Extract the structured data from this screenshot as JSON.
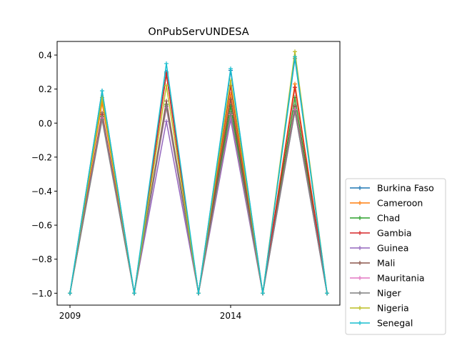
{
  "chart_data": {
    "type": "line",
    "title": "OnPubServUNDESA",
    "xlabel": "",
    "ylabel": "",
    "x": [
      2009,
      2010,
      2011,
      2012,
      2013,
      2014,
      2015,
      2016,
      2017
    ],
    "xticks": [
      2009,
      2014
    ],
    "xtick_labels": [
      "2009",
      "2014"
    ],
    "xlim": [
      2008.6,
      2017.4
    ],
    "ylim": [
      -1.07,
      0.48
    ],
    "yticks": [
      -1.0,
      -0.8,
      -0.6,
      -0.4,
      -0.2,
      0.0,
      0.2,
      0.4
    ],
    "ytick_labels": [
      "−1.0",
      "−0.8",
      "−0.6",
      "−0.4",
      "−0.2",
      "0.0",
      "0.2",
      "0.4"
    ],
    "grid": false,
    "legend_position": "outside-lower-right",
    "series": [
      {
        "name": "Burkina Faso",
        "color": "#1f77b4",
        "values": [
          -1.0,
          0.19,
          -1.0,
          0.3,
          -1.0,
          0.31,
          -1.0,
          0.38,
          -1.0
        ]
      },
      {
        "name": "Cameroon",
        "color": "#ff7f0e",
        "values": [
          -1.0,
          0.12,
          -1.0,
          0.29,
          -1.0,
          0.17,
          -1.0,
          0.23,
          -1.0
        ]
      },
      {
        "name": "Chad",
        "color": "#2ca02c",
        "values": [
          -1.0,
          0.04,
          -1.0,
          0.11,
          -1.0,
          0.1,
          -1.0,
          0.15,
          -1.0
        ]
      },
      {
        "name": "Gambia",
        "color": "#d62728",
        "values": [
          -1.0,
          0.05,
          -1.0,
          0.29,
          -1.0,
          0.22,
          -1.0,
          0.21,
          -1.0
        ]
      },
      {
        "name": "Guinea",
        "color": "#9467bd",
        "values": [
          -1.0,
          0.03,
          -1.0,
          0.01,
          -1.0,
          0.02,
          -1.0,
          0.07,
          -1.0
        ]
      },
      {
        "name": "Mali",
        "color": "#8c564b",
        "values": [
          -1.0,
          0.06,
          -1.0,
          0.13,
          -1.0,
          0.14,
          -1.0,
          0.1,
          -1.0
        ]
      },
      {
        "name": "Mauritania",
        "color": "#e377c2",
        "values": [
          -1.0,
          0.03,
          -1.0,
          0.09,
          -1.0,
          0.05,
          -1.0,
          0.08,
          -1.0
        ]
      },
      {
        "name": "Niger",
        "color": "#7f7f7f",
        "values": [
          -1.0,
          0.02,
          -1.0,
          0.1,
          -1.0,
          0.06,
          -1.0,
          0.07,
          -1.0
        ]
      },
      {
        "name": "Nigeria",
        "color": "#bcbd22",
        "values": [
          -1.0,
          0.15,
          -1.0,
          0.22,
          -1.0,
          0.25,
          -1.0,
          0.42,
          -1.0
        ]
      },
      {
        "name": "Senegal",
        "color": "#17becf",
        "values": [
          -1.0,
          0.19,
          -1.0,
          0.35,
          -1.0,
          0.32,
          -1.0,
          0.39,
          -1.0
        ]
      }
    ]
  }
}
